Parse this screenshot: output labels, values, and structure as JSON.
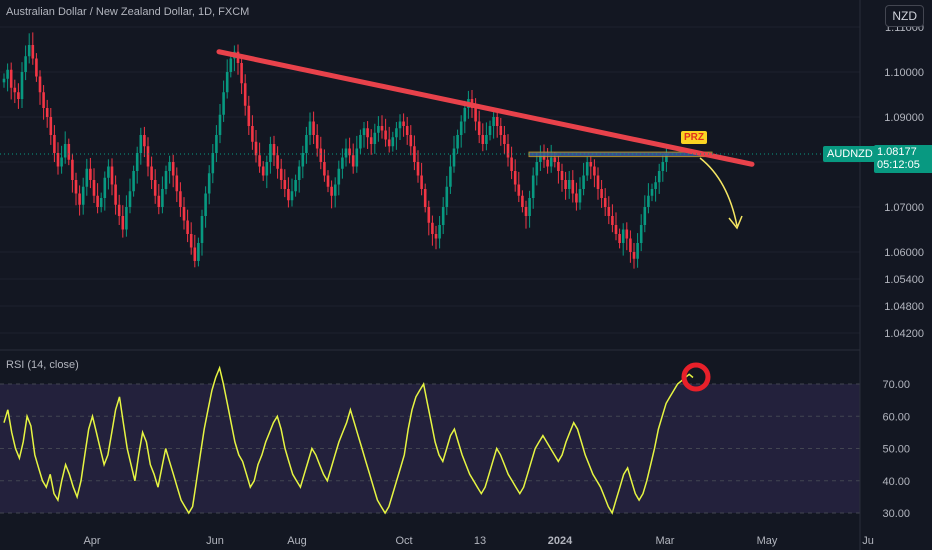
{
  "header": {
    "title": "Australian Dollar / New Zealand Dollar, 1D, FXCM",
    "currency": "NZD"
  },
  "price_tag": {
    "symbol": "AUDNZD",
    "price": "1.08177",
    "countdown": "05:12:05"
  },
  "annotation": {
    "prz_label": "PRZ"
  },
  "rsi": {
    "label": "RSI (14, close)"
  },
  "colors": {
    "background": "#131722",
    "up": "#089981",
    "down": "#f23645",
    "trendline": "#e8424b",
    "prz_zone": "#3a5a9e",
    "rsi_line": "#e6f542",
    "rsi_band": "#2a2545",
    "circle": "#e8202a",
    "arrow": "#f5e663"
  },
  "chart_data": [
    {
      "type": "candlestick",
      "symbol": "AUDNZD",
      "timeframe": "1D",
      "y_ticks": [
        "1.11000",
        "1.10000",
        "1.09000",
        "1.08000",
        "1.07000",
        "1.06000",
        "1.05400",
        "1.04800",
        "1.04200"
      ],
      "y_tick_values": [
        1.11,
        1.1,
        1.09,
        1.08,
        1.07,
        1.06,
        1.054,
        1.048,
        1.042
      ],
      "x_ticks": [
        "Apr",
        "Jun",
        "Aug",
        "Oct",
        "13",
        "2024",
        "Mar",
        "May",
        "Ju"
      ],
      "last_price": 1.08177,
      "trendline": {
        "from": {
          "date": "2023-06-07",
          "price": 1.1045
        },
        "to": {
          "date": "2024-04-10",
          "price": 1.0795
        }
      },
      "prz_zone": {
        "from_date": "2023-12-18",
        "to_date": "2024-03-25",
        "low": 1.0812,
        "high": 1.0822
      },
      "projection": "down-arrow",
      "closes": [
        1.0985,
        1.1005,
        1.0965,
        1.0955,
        1.094,
        1.1,
        1.1035,
        1.106,
        1.103,
        1.099,
        1.0955,
        1.092,
        1.09,
        1.086,
        1.082,
        1.079,
        1.081,
        1.084,
        1.0805,
        1.076,
        1.073,
        1.0705,
        1.0745,
        1.0785,
        1.076,
        1.0725,
        1.07,
        1.072,
        1.0765,
        1.079,
        1.075,
        1.0705,
        1.068,
        1.065,
        1.07,
        1.0735,
        1.078,
        1.082,
        1.086,
        1.0835,
        1.079,
        1.076,
        1.0725,
        1.07,
        1.074,
        1.078,
        1.08,
        1.077,
        1.0735,
        1.07,
        1.067,
        1.064,
        1.061,
        1.058,
        1.062,
        1.068,
        1.073,
        1.0775,
        1.082,
        1.086,
        1.0905,
        1.0955,
        1.1,
        1.103,
        1.1045,
        1.102,
        1.0975,
        1.0925,
        1.088,
        1.0845,
        1.0815,
        1.079,
        1.077,
        1.08,
        1.084,
        1.0815,
        1.0785,
        1.076,
        1.074,
        1.0715,
        1.0735,
        1.076,
        1.079,
        1.082,
        1.086,
        1.089,
        1.086,
        1.083,
        1.08,
        1.077,
        1.0745,
        1.0725,
        1.075,
        1.0785,
        1.081,
        1.083,
        1.0815,
        1.079,
        1.083,
        1.086,
        1.0875,
        1.0855,
        1.084,
        1.0865,
        1.088,
        1.087,
        1.085,
        1.0835,
        1.0855,
        1.0875,
        1.089,
        1.088,
        1.086,
        1.0835,
        1.08,
        1.077,
        1.074,
        1.07,
        1.0665,
        1.064,
        1.063,
        1.066,
        1.07,
        1.0745,
        1.079,
        1.083,
        1.086,
        1.089,
        1.092,
        1.094,
        1.092,
        1.089,
        1.086,
        1.084,
        1.086,
        1.088,
        1.09,
        1.088,
        1.086,
        1.084,
        1.081,
        1.078,
        1.075,
        1.0725,
        1.07,
        1.068,
        1.072,
        1.077,
        1.08,
        1.0815,
        1.0805,
        1.079,
        1.081,
        1.08,
        1.078,
        1.076,
        1.074,
        1.076,
        1.073,
        1.071,
        1.074,
        1.077,
        1.08,
        1.079,
        1.077,
        1.074,
        1.072,
        1.07,
        1.068,
        1.066,
        1.064,
        1.062,
        1.065,
        1.063,
        1.06,
        1.0585,
        1.062,
        1.066,
        1.07,
        1.0725,
        1.074,
        1.0755,
        1.078,
        1.08,
        1.0818
      ]
    },
    {
      "type": "line",
      "name": "RSI (14, close)",
      "y_ticks": [
        "70.00",
        "60.00",
        "50.00",
        "40.00",
        "30.00"
      ],
      "y_tick_values": [
        70,
        60,
        50,
        40,
        30
      ],
      "overbought": 70,
      "oversold": 30,
      "last_value": 72,
      "values": [
        58,
        62,
        55,
        50,
        47,
        52,
        60,
        57,
        48,
        44,
        40,
        38,
        42,
        36,
        34,
        40,
        45,
        42,
        38,
        35,
        40,
        48,
        56,
        60,
        55,
        50,
        45,
        48,
        55,
        62,
        66,
        58,
        50,
        45,
        40,
        48,
        55,
        52,
        45,
        42,
        38,
        44,
        50,
        46,
        42,
        38,
        34,
        32,
        30,
        32,
        40,
        48,
        56,
        62,
        68,
        72,
        75,
        70,
        64,
        58,
        52,
        48,
        46,
        42,
        38,
        40,
        45,
        48,
        52,
        55,
        58,
        60,
        56,
        50,
        46,
        42,
        40,
        38,
        42,
        46,
        50,
        48,
        45,
        42,
        40,
        44,
        48,
        52,
        55,
        58,
        62,
        58,
        54,
        50,
        46,
        42,
        38,
        34,
        32,
        30,
        32,
        36,
        40,
        44,
        48,
        56,
        62,
        66,
        68,
        70,
        64,
        58,
        52,
        48,
        46,
        50,
        54,
        56,
        52,
        48,
        45,
        42,
        40,
        38,
        36,
        38,
        42,
        46,
        50,
        48,
        45,
        42,
        40,
        38,
        36,
        38,
        42,
        46,
        50,
        52,
        54,
        52,
        50,
        48,
        46,
        48,
        52,
        55,
        58,
        56,
        52,
        48,
        45,
        42,
        40,
        38,
        35,
        32,
        30,
        34,
        38,
        42,
        44,
        40,
        36,
        34,
        36,
        40,
        45,
        50,
        56,
        60,
        64,
        66,
        68,
        70,
        71,
        72,
        73,
        72
      ]
    }
  ]
}
